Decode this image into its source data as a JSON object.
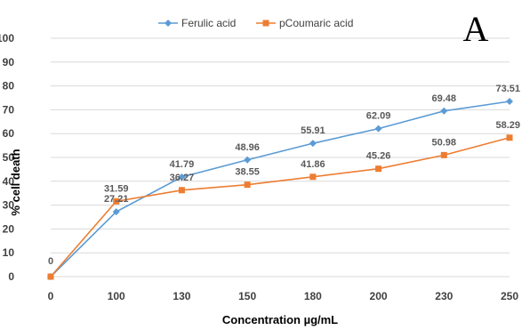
{
  "panel_label": "A",
  "chart_data": {
    "type": "line",
    "categories": [
      "0",
      "100",
      "130",
      "150",
      "180",
      "200",
      "230",
      "250"
    ],
    "series": [
      {
        "name": "Ferulic acid",
        "color": "#5B9BD5",
        "marker": "diamond",
        "values": [
          0,
          27.21,
          41.79,
          48.96,
          55.91,
          62.09,
          69.48,
          73.51
        ],
        "labels": [
          "",
          "27.21",
          "41.79",
          "48.96",
          "55.91",
          "62.09",
          "69.48",
          "73.51"
        ]
      },
      {
        "name": "pCoumaric acid",
        "color": "#ED7D31",
        "marker": "square",
        "values": [
          0,
          31.59,
          36.27,
          38.55,
          41.86,
          45.26,
          50.98,
          58.29
        ],
        "labels": [
          "0",
          "31.59",
          "36.27",
          "38.55",
          "41.86",
          "45.26",
          "50.98",
          "58.29"
        ]
      }
    ],
    "xlabel": "Concentration  µg/mL",
    "ylabel": "% cell death",
    "ylim": [
      0,
      100
    ],
    "yticks": [
      "0",
      "10",
      "20",
      "30",
      "40",
      "50",
      "60",
      "70",
      "80",
      "90",
      "100"
    ],
    "grid": true,
    "legend_position": "top"
  }
}
